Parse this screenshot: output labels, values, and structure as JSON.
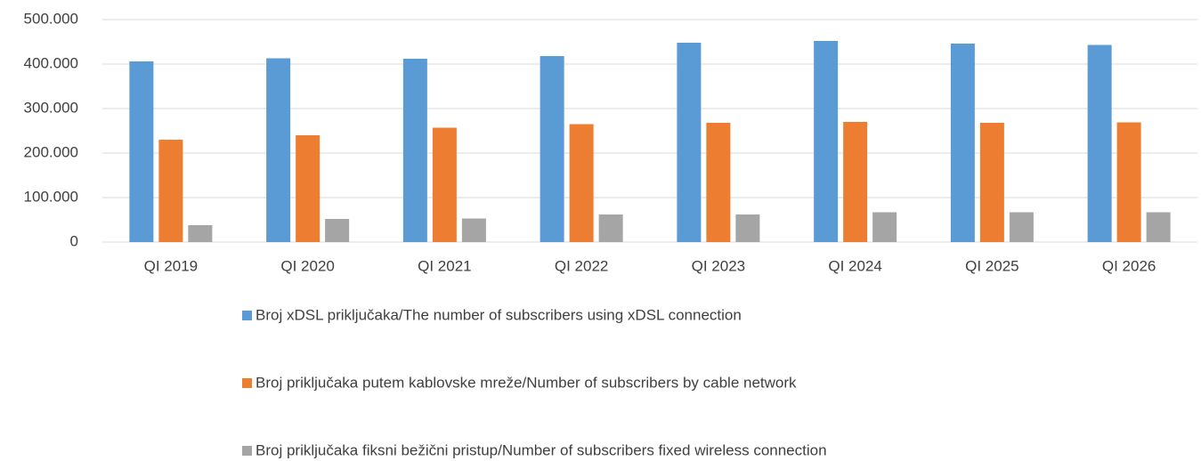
{
  "chart_data": {
    "type": "bar",
    "categories": [
      "QI 2019",
      "QI 2020",
      "QI 2021",
      "QI 2022",
      "QI 2023",
      "QI 2024",
      "QI 2025",
      "QI 2026"
    ],
    "series": [
      {
        "name": "Broj  xDSL priključaka/The number of subscribers using  xDSL connection",
        "color": "#5b9bd5",
        "values": [
          406000,
          413000,
          412000,
          418000,
          448000,
          452000,
          446000,
          443000
        ]
      },
      {
        "name": "Broj priključaka putem  kablovske mreže/Number of subscribers by cable network",
        "color": "#ed7d31",
        "values": [
          230000,
          240000,
          257000,
          265000,
          268000,
          270000,
          268000,
          269000
        ]
      },
      {
        "name": "Broj priključaka fiksni bežični pristup/Number of subscribers fixed wireless connection",
        "color": "#a5a5a5",
        "values": [
          38000,
          52000,
          53000,
          62000,
          62000,
          67000,
          67000,
          67000
        ]
      }
    ],
    "ylim": [
      0,
      500000
    ],
    "yticks": [
      0,
      {
        "value": 100000,
        "label": "100.000"
      },
      {
        "value": 200000,
        "label": "200.000"
      },
      {
        "value": 300000,
        "label": "300.000"
      },
      {
        "value": 400000,
        "label": "400.000"
      },
      {
        "value": 500000,
        "label": "500.000"
      }
    ],
    "grid": true,
    "legend": "bottom"
  }
}
